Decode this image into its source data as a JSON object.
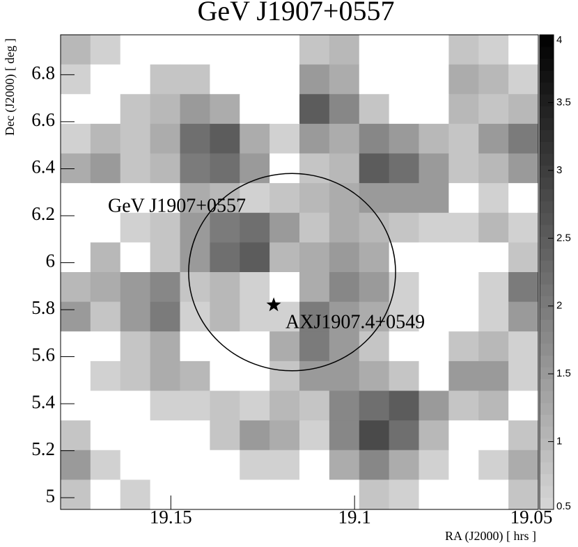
{
  "chart_data": {
    "type": "heatmap",
    "title": "GeV J1907+0557",
    "x_label": "RA (J2000) [ hrs ]",
    "y_label": "Dec (J2000) [ deg ]",
    "xlim": [
      19.18,
      19.05
    ],
    "xticks": [
      19.15,
      19.1,
      19.05
    ],
    "ylim": [
      4.95,
      6.97
    ],
    "yticks": [
      5,
      5.2,
      5.4,
      5.6,
      5.8,
      6,
      6.2,
      6.4,
      6.6,
      6.8
    ],
    "zlim": [
      0.5,
      4
    ],
    "zticks": [
      0.5,
      1,
      1.5,
      2,
      2.5,
      3,
      3.5,
      4
    ],
    "z": [
      [
        1.0,
        0.6,
        0,
        0,
        0,
        0,
        0,
        0,
        0.8,
        1.0,
        0,
        0,
        0,
        0.8,
        0.6,
        0
      ],
      [
        0.6,
        0,
        0,
        0.8,
        0.8,
        0,
        0,
        0,
        1.5,
        1.2,
        0,
        0,
        0,
        1.2,
        1.0,
        0.6
      ],
      [
        0,
        0,
        0.8,
        1.0,
        1.5,
        1.2,
        0,
        0,
        2.5,
        1.8,
        0.8,
        0,
        0,
        1.0,
        0.8,
        1.0
      ],
      [
        0.6,
        1.0,
        0.8,
        1.2,
        2.2,
        2.5,
        1.2,
        0.6,
        1.5,
        1.2,
        1.8,
        1.5,
        1.0,
        0.8,
        1.5,
        2.0
      ],
      [
        1.2,
        1.5,
        0.8,
        1.0,
        2.0,
        2.2,
        1.5,
        0,
        0.8,
        1.0,
        2.5,
        2.2,
        1.5,
        0.8,
        1.0,
        1.5
      ],
      [
        0,
        0,
        0,
        0,
        1.2,
        1.0,
        0.6,
        0.8,
        1.0,
        1.2,
        1.5,
        1.5,
        1.5,
        0,
        0.6,
        0
      ],
      [
        0,
        0,
        0.6,
        0.8,
        1.5,
        2.0,
        2.2,
        1.5,
        0.8,
        1.2,
        1.0,
        0.8,
        0.6,
        0.6,
        1.0,
        0.6
      ],
      [
        0,
        1.0,
        0,
        0.8,
        1.5,
        2.2,
        2.5,
        1.0,
        1.2,
        1.5,
        1.2,
        0,
        0,
        0,
        0,
        0.8
      ],
      [
        1.0,
        1.2,
        1.5,
        1.8,
        0.8,
        1.0,
        0.6,
        0,
        1.2,
        1.8,
        1.5,
        0.6,
        0,
        0,
        0.6,
        2.0
      ],
      [
        1.5,
        0.8,
        1.5,
        2.0,
        0.6,
        1.0,
        0.6,
        0.6,
        2.0,
        1.5,
        1.2,
        0.6,
        0,
        0,
        0.6,
        1.5
      ],
      [
        0,
        0,
        0.8,
        1.2,
        0,
        0,
        0,
        1.2,
        2.0,
        1.5,
        0.8,
        0,
        0,
        0.8,
        1.0,
        0.6
      ],
      [
        0,
        0.6,
        0.8,
        1.2,
        1.0,
        0,
        0,
        0.8,
        1.5,
        1.5,
        1.2,
        0.8,
        0,
        1.5,
        1.5,
        0.6
      ],
      [
        0,
        0,
        0,
        0.6,
        0.6,
        0.8,
        0.6,
        1.0,
        0.8,
        1.8,
        2.2,
        2.5,
        1.5,
        0.8,
        1.0,
        0
      ],
      [
        0.8,
        0,
        0,
        0,
        0,
        0.8,
        1.5,
        1.2,
        0.6,
        1.8,
        2.8,
        2.2,
        1.0,
        0,
        0,
        0.8
      ],
      [
        1.5,
        0.6,
        0,
        0,
        0,
        0,
        0.6,
        0.6,
        0,
        1.2,
        1.8,
        1.2,
        0.6,
        0,
        0.6,
        1.2
      ],
      [
        0.8,
        0,
        0.6,
        0,
        0,
        0,
        0,
        0,
        0,
        0,
        0.8,
        0.6,
        0,
        0,
        0,
        0.8
      ]
    ],
    "region": {
      "label": "GeV J1907+0557",
      "center": [
        19.117,
        5.96
      ],
      "radius_deg": 0.42
    },
    "source": {
      "label": "AXJ1907.4+0549",
      "position": [
        19.122,
        5.82
      ]
    }
  }
}
